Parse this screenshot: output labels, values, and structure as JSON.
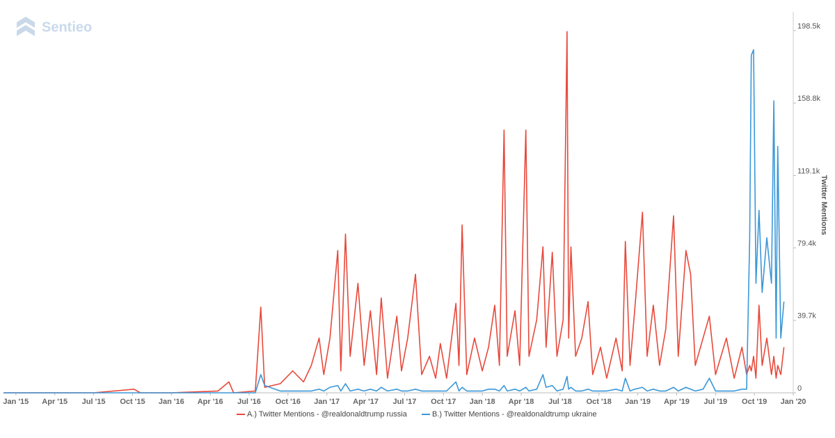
{
  "brand": "Sentieo",
  "chart_data": {
    "type": "line",
    "y_axis_label": "Twitter Mentions",
    "xlim": [
      2014.92,
      2020
    ],
    "xticks": [
      {
        "value": 2015,
        "label": "Jan '15"
      },
      {
        "value": 2015.25,
        "label": "Apr '15"
      },
      {
        "value": 2015.5,
        "label": "Jul '15"
      },
      {
        "value": 2015.75,
        "label": "Oct '15"
      },
      {
        "value": 2016,
        "label": "Jan '16"
      },
      {
        "value": 2016.25,
        "label": "Apr '16"
      },
      {
        "value": 2016.5,
        "label": "Jul '16"
      },
      {
        "value": 2016.75,
        "label": "Oct '16"
      },
      {
        "value": 2017,
        "label": "Jan '17"
      },
      {
        "value": 2017.25,
        "label": "Apr '17"
      },
      {
        "value": 2017.5,
        "label": "Jul '17"
      },
      {
        "value": 2017.75,
        "label": "Oct '17"
      },
      {
        "value": 2018,
        "label": "Jan '18"
      },
      {
        "value": 2018.25,
        "label": "Apr '18"
      },
      {
        "value": 2018.5,
        "label": "Jul '18"
      },
      {
        "value": 2018.75,
        "label": "Oct '18"
      },
      {
        "value": 2019,
        "label": "Jan '19"
      },
      {
        "value": 2019.25,
        "label": "Apr '19"
      },
      {
        "value": 2019.5,
        "label": "Jul '19"
      },
      {
        "value": 2019.75,
        "label": "Oct '19"
      },
      {
        "value": 2020,
        "label": "Jan '20"
      }
    ],
    "ylim": [
      0,
      205000
    ],
    "yticks": [
      0,
      {
        "value": 39700,
        "label": "39.7k"
      },
      {
        "value": 79400,
        "label": "79.4k"
      },
      {
        "value": 119100,
        "label": "119.1k"
      },
      {
        "value": 158800,
        "label": "158.8k"
      },
      {
        "value": 198500,
        "label": "198.5k"
      }
    ],
    "x": [
      2014.92,
      2015.5,
      2015.76,
      2015.8,
      2016.0,
      2016.3,
      2016.37,
      2016.4,
      2016.54,
      2016.575,
      2016.6,
      2016.7,
      2016.78,
      2016.85,
      2016.9,
      2016.95,
      2016.98,
      2017.02,
      2017.07,
      2017.09,
      2017.12,
      2017.15,
      2017.2,
      2017.24,
      2017.28,
      2017.32,
      2017.35,
      2017.39,
      2017.45,
      2017.48,
      2017.52,
      2017.57,
      2017.61,
      2017.66,
      2017.7,
      2017.73,
      2017.77,
      2017.83,
      2017.85,
      2017.87,
      2017.9,
      2017.95,
      2018.0,
      2018.04,
      2018.08,
      2018.11,
      2018.14,
      2018.16,
      2018.21,
      2018.24,
      2018.28,
      2018.3,
      2018.35,
      2018.39,
      2018.41,
      2018.45,
      2018.48,
      2018.52,
      2018.545,
      2018.555,
      2018.57,
      2018.6,
      2018.64,
      2018.68,
      2018.71,
      2018.76,
      2018.8,
      2018.86,
      2018.9,
      2018.92,
      2018.95,
      2018.98,
      2019.03,
      2019.06,
      2019.1,
      2019.14,
      2019.18,
      2019.23,
      2019.26,
      2019.31,
      2019.34,
      2019.37,
      2019.42,
      2019.46,
      2019.5,
      2019.57,
      2019.62,
      2019.67,
      2019.7,
      2019.72,
      2019.73,
      2019.745,
      2019.76,
      2019.78,
      2019.8,
      2019.83,
      2019.86,
      2019.875,
      2019.89,
      2019.9,
      2019.92,
      2019.94
    ],
    "series": [
      {
        "name": "A.) Twitter Mentions - @realdonaldtrump russia",
        "color": "#e8483a",
        "values": [
          0,
          0,
          2000,
          0,
          0,
          1000,
          6000,
          0,
          1000,
          47000,
          3000,
          5000,
          12000,
          6000,
          15000,
          30000,
          10000,
          30000,
          78000,
          12000,
          87000,
          20000,
          60000,
          15000,
          45000,
          10000,
          52000,
          8000,
          42000,
          12000,
          30000,
          65000,
          10000,
          20000,
          8000,
          27000,
          8000,
          49000,
          15000,
          92000,
          10000,
          30000,
          12000,
          25000,
          48000,
          15000,
          144000,
          20000,
          45000,
          15000,
          144000,
          20000,
          40000,
          80000,
          25000,
          77000,
          20000,
          40000,
          198000,
          30000,
          80000,
          20000,
          30000,
          50000,
          10000,
          25000,
          8000,
          30000,
          12000,
          83000,
          15000,
          45000,
          99000,
          20000,
          48000,
          15000,
          35000,
          97000,
          20000,
          78000,
          65000,
          15000,
          30000,
          42000,
          10000,
          30000,
          8000,
          25000,
          10000,
          15000,
          12000,
          20000,
          8000,
          48000,
          15000,
          30000,
          10000,
          20000,
          8000,
          15000,
          10000,
          25000
        ]
      },
      {
        "name": "B.) Twitter Mentions - @realdonaldtrump ukraine",
        "color": "#3a97d8",
        "values": [
          0,
          0,
          0,
          0,
          0,
          0,
          0,
          0,
          0,
          10000,
          4000,
          1000,
          1000,
          1000,
          1000,
          2000,
          1000,
          3000,
          4000,
          1000,
          5000,
          1000,
          2000,
          1000,
          2000,
          1000,
          3000,
          1000,
          2000,
          1000,
          1000,
          2000,
          1000,
          1000,
          1000,
          1000,
          1000,
          6000,
          1000,
          3000,
          1000,
          1000,
          1000,
          2000,
          2000,
          1000,
          4000,
          1000,
          2000,
          1000,
          3000,
          1000,
          2000,
          10000,
          3000,
          4000,
          1000,
          2000,
          9000,
          2000,
          3000,
          1000,
          1000,
          2000,
          1000,
          1000,
          1000,
          2000,
          1000,
          8000,
          1000,
          2000,
          3000,
          1000,
          2000,
          1000,
          1000,
          3000,
          1000,
          3000,
          2000,
          1000,
          2000,
          8000,
          1000,
          1000,
          1000,
          2000,
          2000,
          85000,
          185000,
          188000,
          60000,
          100000,
          55000,
          85000,
          60000,
          160000,
          30000,
          135000,
          30000,
          50000
        ]
      }
    ],
    "legend": "bottom"
  }
}
